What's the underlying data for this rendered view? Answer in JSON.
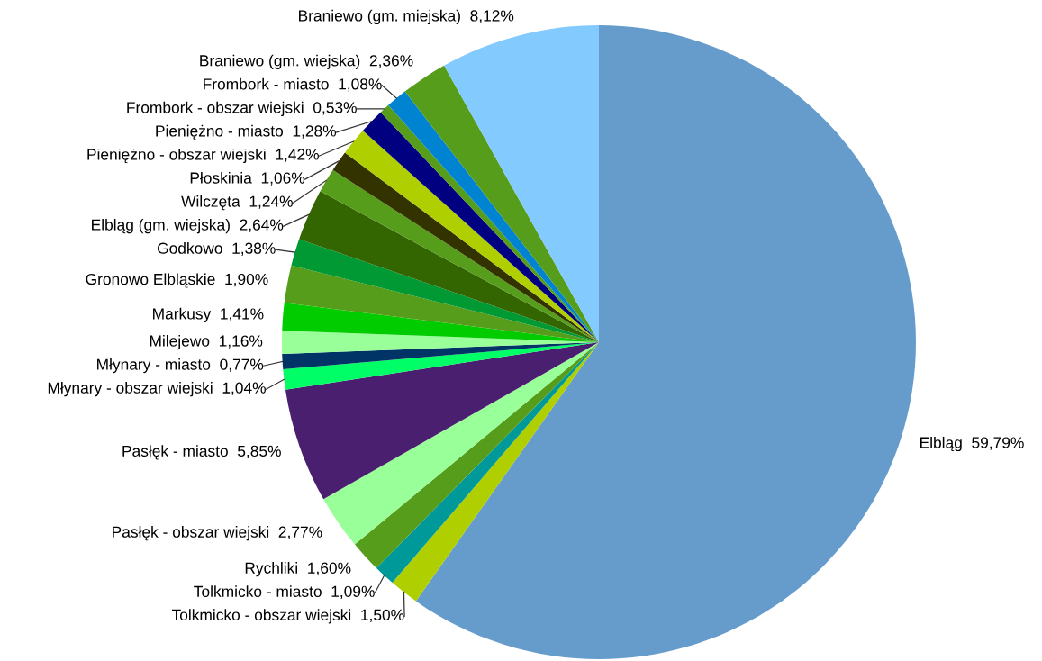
{
  "chart_data": {
    "type": "pie",
    "categories": [
      "Elbląg",
      "Tolkmicko - obszar wiejski",
      "Tolkmicko - miasto",
      "Rychliki",
      "Pasłęk - obszar wiejski",
      "Pasłęk - miasto",
      "Młynary - obszar wiejski",
      "Młynary - miasto",
      "Milejewo",
      "Markusy",
      "Gronowo Elbląskie",
      "Godkowo",
      "Elbląg (gm. wiejska)",
      "Wilczęta",
      "Płoskinia",
      "Pieniężno - obszar wiejski",
      "Pieniężno - miasto",
      "Frombork - obszar wiejski",
      "Frombork - miasto",
      "Braniewo (gm. wiejska)",
      "Braniewo (gm. miejska)"
    ],
    "values": [
      59.79,
      1.5,
      1.09,
      1.6,
      2.77,
      5.85,
      1.04,
      0.77,
      1.16,
      1.41,
      1.9,
      1.38,
      2.64,
      1.24,
      1.06,
      1.42,
      1.28,
      0.53,
      1.08,
      2.36,
      8.12
    ],
    "value_labels": [
      "59,79%",
      "1,50%",
      "1,09%",
      "1,60%",
      "2,77%",
      "5,85%",
      "1,04%",
      "0,77%",
      "1,16%",
      "1,41%",
      "1,90%",
      "1,38%",
      "2,64%",
      "1,24%",
      "1,06%",
      "1,42%",
      "1,28%",
      "0,53%",
      "1,08%",
      "2,36%",
      "8,12%"
    ],
    "colors": [
      "#669ccc",
      "#b0cf00",
      "#00999a",
      "#579d1c",
      "#99ff99",
      "#4b1f6f",
      "#00ff66",
      "#003366",
      "#99ff99",
      "#00cc00",
      "#579d1c",
      "#009933",
      "#336600",
      "#579d1c",
      "#333300",
      "#b0cf00",
      "#000080",
      "#579d1c",
      "#0084d1",
      "#579d1c",
      "#83caff"
    ],
    "legend": false
  }
}
